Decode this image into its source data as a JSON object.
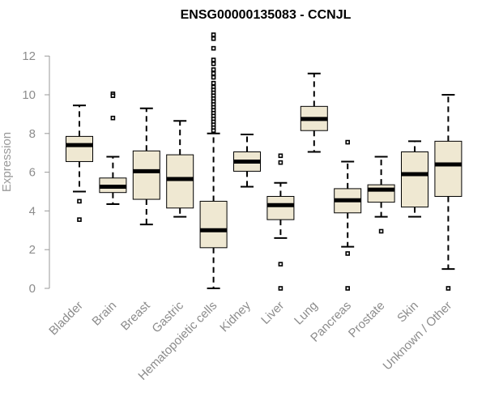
{
  "chart_data": {
    "type": "boxplot",
    "title": "ENSG00000135083 - CCNJL",
    "xlabel": "",
    "ylabel": "Expression",
    "ylim": [
      0,
      12.6
    ],
    "yticks": [
      0,
      2,
      4,
      6,
      8,
      10,
      12
    ],
    "box_color": "#efe8d2",
    "categories": [
      "Bladder",
      "Brain",
      "Breast",
      "Gastric",
      "Hematopoietic cells",
      "Kidney",
      "Liver",
      "Lung",
      "Pancreas",
      "Prostate",
      "Skin",
      "Unknown / Other"
    ],
    "boxes": [
      {
        "name": "Bladder",
        "whisker_low": 5.0,
        "q1": 6.55,
        "median": 7.4,
        "q3": 7.85,
        "whisker_high": 9.45,
        "outliers": [
          4.5,
          3.55
        ]
      },
      {
        "name": "Brain",
        "whisker_low": 4.35,
        "q1": 4.95,
        "median": 5.25,
        "q3": 5.7,
        "whisker_high": 6.8,
        "outliers": [
          10.05,
          9.95,
          8.8
        ]
      },
      {
        "name": "Breast",
        "whisker_low": 3.3,
        "q1": 4.6,
        "median": 6.05,
        "q3": 7.1,
        "whisker_high": 9.3,
        "outliers": []
      },
      {
        "name": "Gastric",
        "whisker_low": 3.7,
        "q1": 4.15,
        "median": 5.65,
        "q3": 6.9,
        "whisker_high": 8.65,
        "outliers": []
      },
      {
        "name": "Hematopoietic cells",
        "whisker_low": 0.0,
        "q1": 2.1,
        "median": 3.0,
        "q3": 4.5,
        "whisker_high": 8.0,
        "outliers": [
          13.1,
          12.9,
          12.4,
          11.8,
          11.6,
          11.3,
          11.1,
          10.9,
          10.6,
          10.4,
          10.25,
          10.1,
          9.95,
          9.8,
          9.65,
          9.5,
          9.35,
          9.2,
          9.05,
          8.9,
          8.75,
          8.6,
          8.45,
          8.3,
          8.15
        ]
      },
      {
        "name": "Kidney",
        "whisker_low": 5.25,
        "q1": 6.05,
        "median": 6.55,
        "q3": 7.05,
        "whisker_high": 7.95,
        "outliers": []
      },
      {
        "name": "Liver",
        "whisker_low": 2.6,
        "q1": 3.55,
        "median": 4.3,
        "q3": 4.75,
        "whisker_high": 5.45,
        "outliers": [
          6.85,
          6.5,
          1.25,
          0.0
        ]
      },
      {
        "name": "Lung",
        "whisker_low": 7.05,
        "q1": 8.15,
        "median": 8.75,
        "q3": 9.4,
        "whisker_high": 11.1,
        "outliers": []
      },
      {
        "name": "Pancreas",
        "whisker_low": 2.15,
        "q1": 3.9,
        "median": 4.55,
        "q3": 5.15,
        "whisker_high": 6.55,
        "outliers": [
          7.55,
          1.8,
          0.0
        ]
      },
      {
        "name": "Prostate",
        "whisker_low": 3.7,
        "q1": 4.45,
        "median": 5.1,
        "q3": 5.35,
        "whisker_high": 6.8,
        "outliers": [
          2.95
        ]
      },
      {
        "name": "Skin",
        "whisker_low": 3.7,
        "q1": 4.2,
        "median": 5.9,
        "q3": 7.05,
        "whisker_high": 7.6,
        "outliers": []
      },
      {
        "name": "Unknown / Other",
        "whisker_low": 1.0,
        "q1": 4.75,
        "median": 6.4,
        "q3": 7.6,
        "whisker_high": 10.0,
        "outliers": [
          0.0
        ]
      }
    ]
  }
}
